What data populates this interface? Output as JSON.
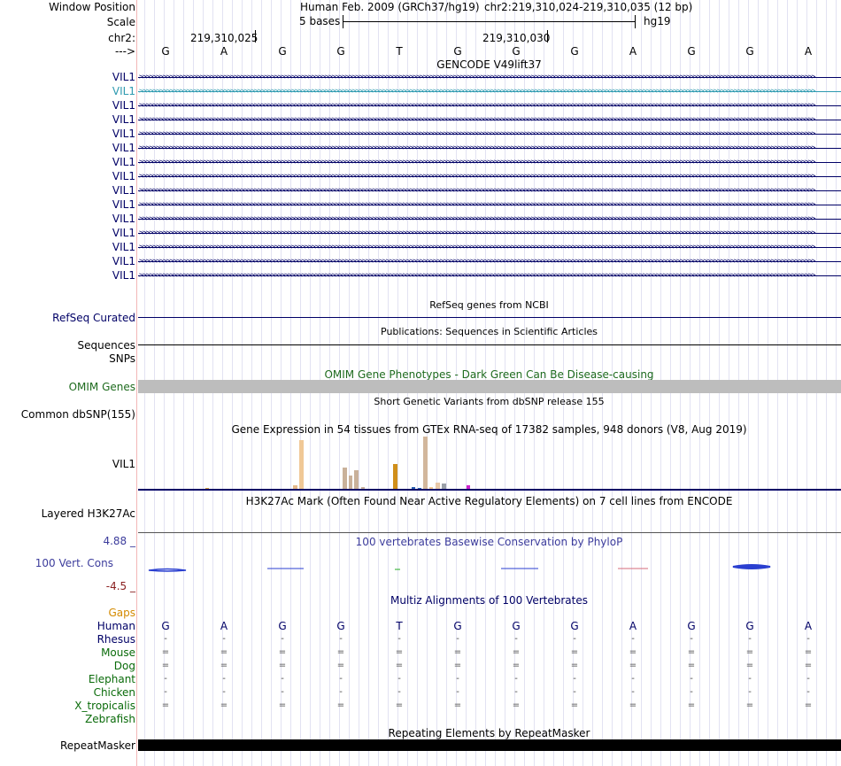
{
  "header": {
    "window_position_label": "Window Position",
    "assembly_text": "Human Feb. 2009 (GRCh37/hg19)",
    "position_text": "chr2:219,310,024-219,310,035 (12 bp)",
    "scale_label": "Scale",
    "scale_text": "5 bases",
    "scale_db": "hg19",
    "chrom_label": "chr2:",
    "coord_left": "219,310,025",
    "coord_right": "219,310,030",
    "strand_label": "--->",
    "bases": [
      "G",
      "A",
      "G",
      "G",
      "T",
      "G",
      "G",
      "G",
      "A",
      "G",
      "G",
      "A"
    ]
  },
  "gencode": {
    "title": "GENCODE V49lift37",
    "gene_rows": [
      "VIL1",
      "VIL1",
      "VIL1",
      "VIL1",
      "VIL1",
      "VIL1",
      "VIL1",
      "VIL1",
      "VIL1",
      "VIL1",
      "VIL1",
      "VIL1",
      "VIL1",
      "VIL1",
      "VIL1"
    ],
    "highlight_row": 1
  },
  "refseq": {
    "title": "RefSeq genes from NCBI",
    "label": "RefSeq Curated"
  },
  "pubs": {
    "title": "Publications: Sequences in Scientific Articles",
    "label": "Sequences"
  },
  "snps": {
    "label": "SNPs"
  },
  "omim": {
    "title": "OMIM Gene Phenotypes - Dark Green Can Be Disease-causing",
    "label": "OMIM Genes"
  },
  "dbsnp": {
    "title": "Short Genetic Variants from dbSNP release 155",
    "label": "Common dbSNP(155)"
  },
  "gtex": {
    "title": "Gene Expression in 54 tissues from GTEx RNA-seq of 17382 samples, 948 donors (V8, Aug 2019)",
    "label": "VIL1"
  },
  "h3k27ac": {
    "title": "H3K27Ac Mark (Often Found Near Active Regulatory Elements) on 7 cell lines from ENCODE",
    "label": "Layered H3K27Ac"
  },
  "phylop": {
    "title": "100 vertebrates Basewise Conservation by PhyloP",
    "label": "100 Vert. Cons",
    "max_label": "4.88 _",
    "min_label": "-4.5 _"
  },
  "multiz": {
    "title": "Multiz Alignments of 100 Vertebrates",
    "species": [
      {
        "name": "Gaps",
        "color": "#d48a00",
        "row": []
      },
      {
        "name": "Human",
        "color": "#000066",
        "row": [
          "G",
          "A",
          "G",
          "G",
          "T",
          "G",
          "G",
          "G",
          "A",
          "G",
          "G",
          "A"
        ]
      },
      {
        "name": "Rhesus",
        "color": "#000066",
        "row": [
          "-",
          "-",
          "-",
          "-",
          "-",
          "-",
          "-",
          "-",
          "-",
          "-",
          "-",
          "-"
        ]
      },
      {
        "name": "Mouse",
        "color": "#0a6b0a",
        "row": [
          "=",
          "=",
          "=",
          "=",
          "=",
          "=",
          "=",
          "=",
          "=",
          "=",
          "=",
          "="
        ]
      },
      {
        "name": "Dog",
        "color": "#0a6b0a",
        "row": [
          "=",
          "=",
          "=",
          "=",
          "=",
          "=",
          "=",
          "=",
          "=",
          "=",
          "=",
          "="
        ]
      },
      {
        "name": "Elephant",
        "color": "#0a6b0a",
        "row": [
          "-",
          "-",
          "-",
          "-",
          "-",
          "-",
          "-",
          "-",
          "-",
          "-",
          "-",
          "-"
        ]
      },
      {
        "name": "Chicken",
        "color": "#0a6b0a",
        "row": [
          "-",
          "-",
          "-",
          "-",
          "-",
          "-",
          "-",
          "-",
          "-",
          "-",
          "-",
          "-"
        ]
      },
      {
        "name": "X_tropicalis",
        "color": "#0a6b0a",
        "row": [
          "=",
          "=",
          "=",
          "=",
          "=",
          "=",
          "=",
          "=",
          "=",
          "=",
          "=",
          "="
        ]
      },
      {
        "name": "Zebrafish",
        "color": "#0a6b0a",
        "row": []
      }
    ]
  },
  "repeatmasker": {
    "title": "Repeating Elements by RepeatMasker",
    "label": "RepeatMasker"
  },
  "colors": {
    "gene_navy": "#000066",
    "gene_highlight": "#2e9ab0",
    "omim_green": "#1e6b1e",
    "omim_bar": "#bdbdbd",
    "phylop_blue": "#3c3c9c",
    "phylop_red": "#8a2020"
  }
}
